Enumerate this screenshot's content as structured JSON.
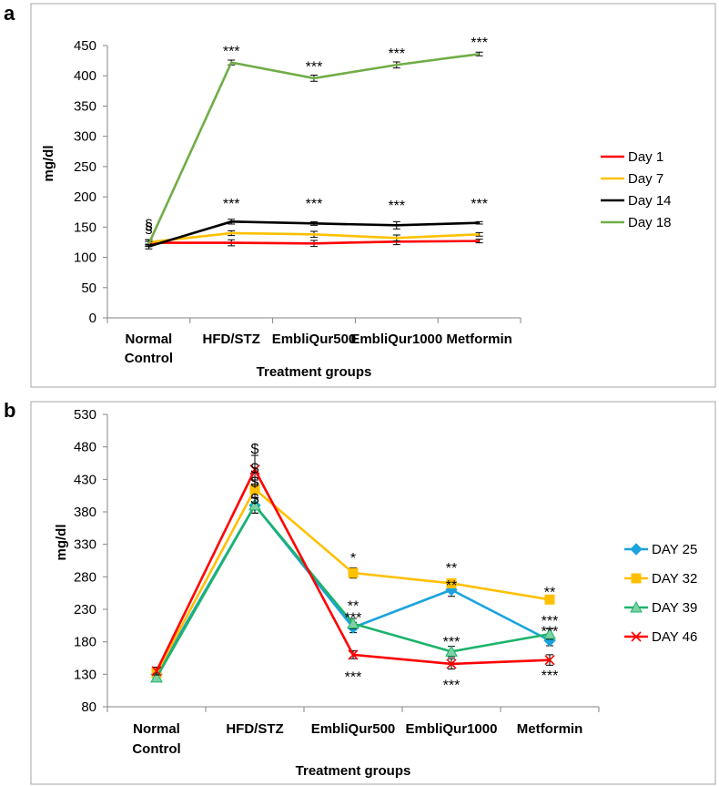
{
  "panels": [
    {
      "letter": "a"
    },
    {
      "letter": "b"
    }
  ],
  "chart_data": [
    {
      "type": "line",
      "panel": "a",
      "title": "",
      "xlabel": "Treatment groups",
      "ylabel": "mg/dl",
      "ylim": [
        0,
        450
      ],
      "ytick_step": 50,
      "categories": [
        "Normal\nControl",
        "HFD/STZ",
        "EmbliQur500",
        "EmbliQur1000",
        "Metformin"
      ],
      "series": [
        {
          "name": "Day 1",
          "color": "#ff0000",
          "values": [
            124,
            124,
            123,
            126,
            127
          ],
          "errors": [
            5,
            5,
            5,
            5,
            3
          ]
        },
        {
          "name": "Day 7",
          "color": "#ffc000",
          "values": [
            125,
            140,
            138,
            132,
            138
          ],
          "errors": [
            4,
            4,
            5,
            5,
            3
          ]
        },
        {
          "name": "Day 14",
          "color": "#000000",
          "values": [
            118,
            159,
            156,
            153,
            157
          ],
          "errors": [
            4,
            4,
            3,
            6,
            2
          ]
        },
        {
          "name": "Day 18",
          "color": "#70ad47",
          "values": [
            122,
            422,
            396,
            418,
            436
          ],
          "errors": [
            4,
            4,
            5,
            5,
            3
          ]
        }
      ],
      "annotations": [
        {
          "text": "§",
          "category": 0,
          "value": 150
        },
        {
          "text": "§",
          "category": 0,
          "value": 155
        },
        {
          "text": "***",
          "category": 1,
          "value": 445
        },
        {
          "text": "***",
          "category": 2,
          "value": 419
        },
        {
          "text": "***",
          "category": 3,
          "value": 441
        },
        {
          "text": "***",
          "category": 4,
          "value": 459
        },
        {
          "text": "***",
          "category": 1,
          "value": 193
        },
        {
          "text": "***",
          "category": 2,
          "value": 193
        },
        {
          "text": "***",
          "category": 3,
          "value": 190
        },
        {
          "text": "***",
          "category": 4,
          "value": 193
        }
      ]
    },
    {
      "type": "line",
      "panel": "b",
      "title": "",
      "xlabel": "Treatment groups",
      "ylabel": "mg/dl",
      "ylim": [
        80,
        530
      ],
      "ytick_step": 50,
      "categories": [
        "Normal\nControl",
        "HFD/STZ",
        "EmbliQur500",
        "EmbliQur1000",
        "Metformin"
      ],
      "series": [
        {
          "name": "DAY 25",
          "color": "#1aa3dc",
          "marker": "diamond",
          "values": [
            130,
            390,
            202,
            260,
            182
          ],
          "errors": [
            6,
            12,
            8,
            10,
            8
          ]
        },
        {
          "name": "DAY 32",
          "color": "#ffc000",
          "marker": "square",
          "values": [
            132,
            415,
            286,
            270,
            245
          ],
          "errors": [
            6,
            14,
            8,
            6,
            6
          ]
        },
        {
          "name": "DAY 39",
          "color": "#1db36b",
          "marker": "triangle",
          "values": [
            125,
            390,
            208,
            165,
            192
          ],
          "errors": [
            6,
            12,
            8,
            8,
            8
          ]
        },
        {
          "name": "DAY 46",
          "color": "#ff0000",
          "marker": "x",
          "values": [
            135,
            445,
            160,
            146,
            152
          ],
          "errors": [
            6,
            22,
            6,
            8,
            8
          ]
        }
      ],
      "annotations": [
        {
          "text": "$",
          "category": 1,
          "value": 478
        },
        {
          "text": "$",
          "category": 1,
          "value": 448
        },
        {
          "text": "$",
          "category": 1,
          "value": 427
        },
        {
          "text": "$",
          "category": 1,
          "value": 401
        },
        {
          "text": "*",
          "category": 2,
          "value": 313
        },
        {
          "text": "**",
          "category": 2,
          "value": 239
        },
        {
          "text": "***",
          "category": 2,
          "value": 221
        },
        {
          "text": "***",
          "category": 2,
          "value": 130
        },
        {
          "text": "**",
          "category": 3,
          "value": 297
        },
        {
          "text": "**",
          "category": 3,
          "value": 271
        },
        {
          "text": "***",
          "category": 3,
          "value": 184
        },
        {
          "text": "***",
          "category": 3,
          "value": 117
        },
        {
          "text": "**",
          "category": 4,
          "value": 260
        },
        {
          "text": "***",
          "category": 4,
          "value": 216
        },
        {
          "text": "***",
          "category": 4,
          "value": 200
        },
        {
          "text": "***",
          "category": 4,
          "value": 132
        }
      ]
    }
  ]
}
